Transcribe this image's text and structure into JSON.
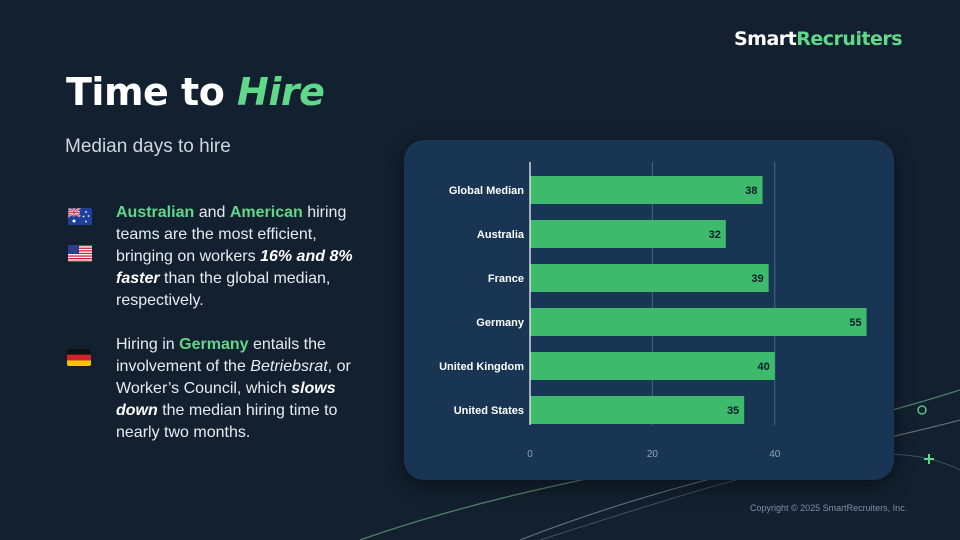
{
  "brand": {
    "part1": "Smart",
    "part2": "Recruiters"
  },
  "title": {
    "plain": "Time to ",
    "highlight": "Hire"
  },
  "subtitle": "Median days to hire",
  "bullet1": {
    "country1": "Australian",
    "and": " and ",
    "country2": "American",
    "text1": " hiring teams are the most efficient, bringing on workers ",
    "emph1": "16% and 8% faster",
    "text2": " than the global median, respectively."
  },
  "bullet2": {
    "text1": "Hiring in ",
    "country": "Germany",
    "text2": " entails the involvement of the ",
    "term": "Betriebsrat",
    "text3": ", or Worker’s Council, which ",
    "emph": "slows down",
    "text4": " the median hiring time to nearly two months."
  },
  "flags": [
    "australia-flag",
    "usa-flag",
    "germany-flag"
  ],
  "colors": {
    "background": "#13202f",
    "panel": "#183553",
    "accent": "#5fd88a",
    "bar": "#3dba6c"
  },
  "chart_data": {
    "type": "bar",
    "orientation": "horizontal",
    "categories": [
      "Global Median",
      "Australia",
      "France",
      "Germany",
      "United Kingdom",
      "United States"
    ],
    "values": [
      38,
      32,
      39,
      55,
      40,
      35
    ],
    "xticks": [
      0,
      20,
      40
    ],
    "xlim": [
      0,
      55
    ],
    "grid": true,
    "data_labels": true
  },
  "copyright": "Copyright © 2025 SmartRecruiters, Inc."
}
